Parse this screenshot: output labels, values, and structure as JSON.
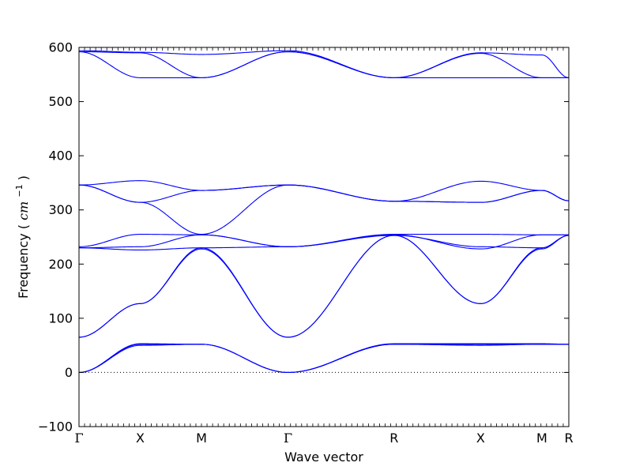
{
  "chart_data": {
    "type": "line",
    "title": "",
    "xlabel": "Wave vector",
    "ylabel": "Frequency",
    "ylabel_unit": "cm",
    "ylabel_unit_exp": "−1",
    "ylim": [
      -100,
      600
    ],
    "yticks": [
      -100,
      0,
      100,
      200,
      300,
      400,
      500,
      600
    ],
    "grid": false,
    "zero_line": true,
    "line_color": "#0000ff",
    "xlim": [
      0,
      4.5
    ],
    "high_symmetry_points": [
      {
        "label": "Γ",
        "x": 0.0
      },
      {
        "label": "X",
        "x": 0.5
      },
      {
        "label": "M",
        "x": 1.0
      },
      {
        "label": "Γ",
        "x": 1.707
      },
      {
        "label": "R",
        "x": 2.573
      },
      {
        "label": "X",
        "x": 3.28
      },
      {
        "label": "M",
        "x": 3.78
      },
      {
        "label": "R",
        "x": 4.0
      }
    ],
    "series": [
      {
        "x": [
          0,
          0.5,
          1.0,
          1.707,
          2.573,
          3.28,
          3.78,
          4.0
        ],
        "values": [
          0,
          50,
          52,
          0,
          52,
          50,
          52,
          52
        ]
      },
      {
        "x": [
          0,
          0.5,
          1.0,
          1.707,
          2.573,
          3.28,
          3.78,
          4.0
        ],
        "values": [
          0,
          52,
          52,
          0,
          52,
          52,
          52,
          52
        ]
      },
      {
        "x": [
          0,
          0.5,
          1.0,
          1.707,
          2.573,
          3.28,
          3.78,
          4.0
        ],
        "values": [
          0,
          53,
          52,
          0,
          53,
          53,
          53,
          52
        ]
      },
      {
        "x": [
          0,
          0.5,
          1.0,
          1.707,
          2.573,
          3.28,
          3.78,
          4.0
        ],
        "values": [
          65,
          127,
          228,
          65,
          253,
          127,
          228,
          253
        ]
      },
      {
        "x": [
          0,
          0.5,
          1.0,
          1.707,
          2.573,
          3.28,
          3.78,
          4.0
        ],
        "values": [
          65,
          127,
          230,
          65,
          253,
          127,
          230,
          253
        ]
      },
      {
        "x": [
          0,
          0.5,
          1.0,
          1.707,
          2.573,
          3.28,
          3.78,
          4.0
        ],
        "values": [
          230,
          226,
          230,
          232,
          253,
          232,
          230,
          253
        ]
      },
      {
        "x": [
          0,
          0.5,
          1.0,
          1.707,
          2.573,
          3.28,
          3.78,
          4.0
        ],
        "values": [
          230,
          232,
          254,
          232,
          254,
          228,
          254,
          254
        ]
      },
      {
        "x": [
          0,
          0.5,
          1.0,
          1.707,
          2.573,
          3.28,
          3.78,
          4.0
        ],
        "values": [
          232,
          255,
          254,
          232,
          255,
          255,
          254,
          254
        ]
      },
      {
        "x": [
          0,
          0.5,
          1.0,
          1.707,
          2.573,
          3.28,
          3.78,
          4.0
        ],
        "values": [
          346,
          314,
          255,
          346,
          316,
          314,
          336,
          317
        ]
      },
      {
        "x": [
          0,
          0.5,
          1.0,
          1.707,
          2.573,
          3.28,
          3.78,
          4.0
        ],
        "values": [
          346,
          314,
          336,
          346,
          316,
          353,
          336,
          317
        ]
      },
      {
        "x": [
          0,
          0.5,
          1.0,
          1.707,
          2.573,
          3.28,
          3.78,
          4.0
        ],
        "values": [
          346,
          354,
          336,
          346,
          316,
          314,
          336,
          317
        ]
      },
      {
        "x": [
          0,
          0.5,
          1.0,
          1.707,
          2.573,
          3.28,
          3.78,
          4.0
        ],
        "values": [
          592,
          544,
          544,
          592,
          544,
          544,
          544,
          544
        ]
      },
      {
        "x": [
          0,
          0.5,
          1.0,
          1.707,
          2.573,
          3.28,
          3.78,
          4.0
        ],
        "values": [
          592,
          590,
          544,
          592,
          544,
          590,
          586,
          544
        ]
      },
      {
        "x": [
          0,
          0.5,
          1.0,
          1.707,
          2.573,
          3.28,
          3.78,
          4.0
        ],
        "values": [
          594,
          591,
          587,
          594,
          544,
          589,
          544,
          544
        ]
      }
    ]
  }
}
